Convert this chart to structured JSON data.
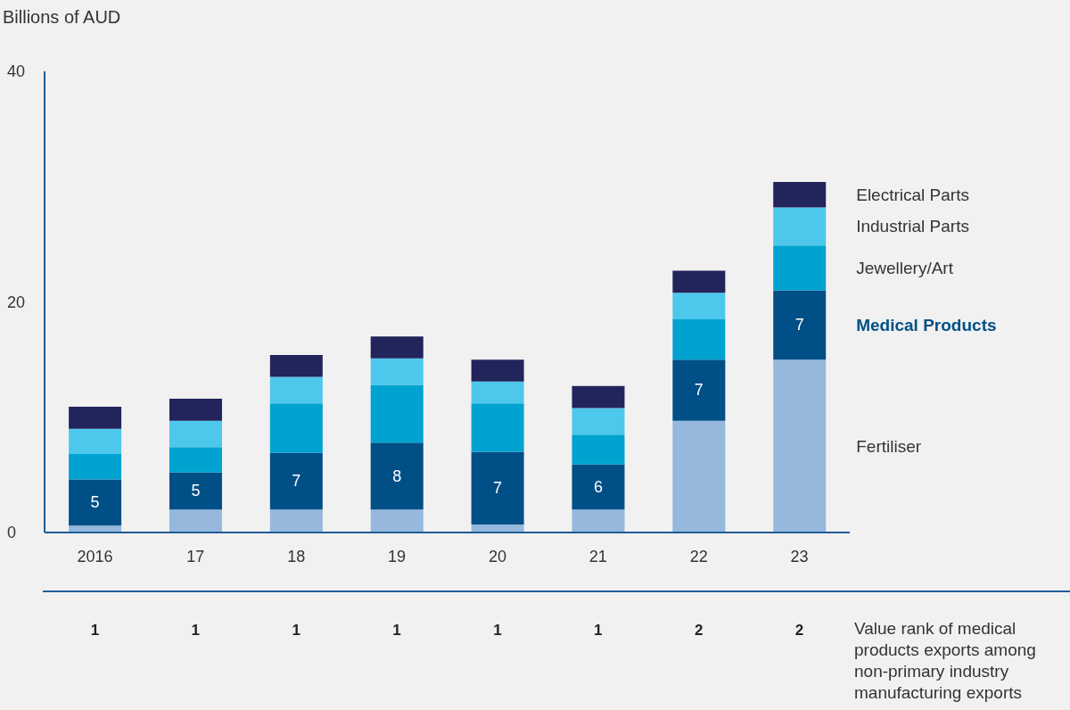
{
  "chart_data": {
    "type": "bar",
    "stacked": true,
    "ylabel": "Billions of AUD",
    "categories": [
      "2016",
      "17",
      "18",
      "19",
      "20",
      "21",
      "22",
      "23"
    ],
    "series": [
      {
        "name": "Fertiliser",
        "color": "#95b8dc",
        "values": [
          0.6,
          2.0,
          2.0,
          2.0,
          0.7,
          2.0,
          9.7,
          15.0
        ]
      },
      {
        "name": "Medical Products",
        "color": "#004f86",
        "values": [
          4.0,
          3.2,
          4.9,
          5.8,
          6.3,
          3.9,
          5.3,
          6.0
        ]
      },
      {
        "name": "Jewellery/Art",
        "color": "#00a2d0",
        "values": [
          2.2,
          2.2,
          4.3,
          5.0,
          4.2,
          2.6,
          3.5,
          3.9
        ]
      },
      {
        "name": "Industrial Parts",
        "color": "#4dc8ec",
        "values": [
          2.2,
          2.3,
          2.3,
          2.3,
          1.9,
          2.3,
          2.3,
          3.3
        ]
      },
      {
        "name": "Electrical Parts",
        "color": "#22245c",
        "values": [
          1.9,
          1.9,
          1.9,
          1.9,
          1.9,
          1.9,
          1.9,
          2.2
        ]
      }
    ],
    "ylim": [
      0,
      40
    ],
    "yticks": [
      0,
      20,
      40
    ],
    "grid": false,
    "legend": false,
    "annotations": [
      "5",
      "5",
      "7",
      "8",
      "7",
      "6",
      "7",
      "7",
      "1",
      "1",
      "1",
      "1",
      "1",
      "1",
      "2",
      "2",
      "Value rank of medical products exports among non-primary industry manufacturing exports"
    ]
  }
}
